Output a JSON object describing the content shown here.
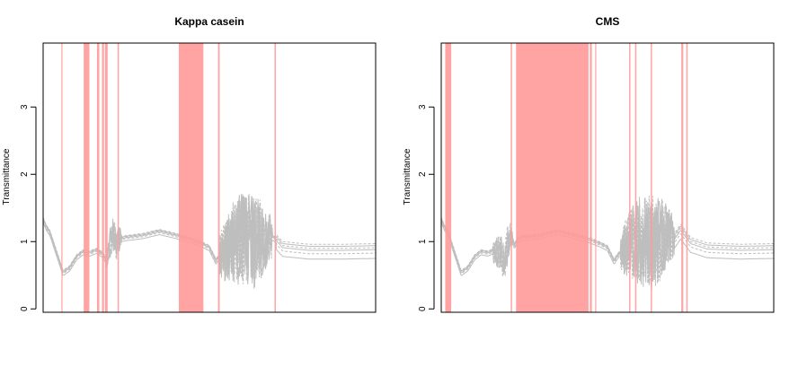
{
  "chart_data": [
    {
      "type": "line",
      "title": "Kappa casein",
      "xlabel": "",
      "ylabel": "Transmittance",
      "x_tick_labels_shown": false,
      "xlim": [
        0,
        1
      ],
      "ylim": [
        -0.05,
        3.95
      ],
      "yticks": [
        0,
        1,
        2,
        3
      ],
      "grid": false,
      "line_color": "#bebebe",
      "highlight_color": "#ff9999",
      "highlight_regions": [
        [
          0.055,
          0.058
        ],
        [
          0.122,
          0.139
        ],
        [
          0.162,
          0.169
        ],
        [
          0.177,
          0.183
        ],
        [
          0.186,
          0.194
        ],
        [
          0.224,
          0.228
        ],
        [
          0.408,
          0.482
        ],
        [
          0.526,
          0.531
        ],
        [
          0.696,
          0.7
        ]
      ],
      "series_profile": {
        "x": [
          0.0,
          0.01,
          0.02,
          0.04,
          0.06,
          0.08,
          0.1,
          0.12,
          0.14,
          0.16,
          0.18,
          0.19,
          0.2,
          0.21,
          0.22,
          0.23,
          0.25,
          0.3,
          0.35,
          0.4,
          0.45,
          0.48,
          0.5,
          0.52,
          0.53,
          0.56,
          0.6,
          0.64,
          0.68,
          0.7,
          0.72,
          0.8,
          0.9,
          1.0
        ],
        "y": [
          1.34,
          1.22,
          1.15,
          0.85,
          0.55,
          0.62,
          0.78,
          0.86,
          0.84,
          0.88,
          0.82,
          0.72,
          0.98,
          1.12,
          0.95,
          1.05,
          1.07,
          1.1,
          1.16,
          1.1,
          1.03,
          0.97,
          0.92,
          0.72,
          0.8,
          0.95,
          1.05,
          1.0,
          1.1,
          1.05,
          0.94,
          0.9,
          0.9,
          0.91
        ]
      },
      "noisy_ranges": [
        {
          "x": [
            0.19,
            0.235
          ],
          "amplitude": 0.5
        },
        {
          "x": [
            0.53,
            0.69
          ],
          "amplitude": 1.4
        }
      ],
      "offsets": [
        -0.16,
        -0.08,
        -0.03,
        0,
        0.03,
        0.06
      ]
    },
    {
      "type": "line",
      "title": "CMS",
      "xlabel": "",
      "ylabel": "Transmittance",
      "x_tick_labels_shown": false,
      "xlim": [
        0,
        1
      ],
      "ylim": [
        -0.05,
        3.95
      ],
      "yticks": [
        0,
        1,
        2,
        3
      ],
      "grid": false,
      "line_color": "#bebebe",
      "highlight_color": "#ff9999",
      "highlight_regions": [
        [
          0.012,
          0.03
        ],
        [
          0.209,
          0.213
        ],
        [
          0.225,
          0.443
        ],
        [
          0.447,
          0.453
        ],
        [
          0.463,
          0.466
        ],
        [
          0.565,
          0.569
        ],
        [
          0.583,
          0.587
        ],
        [
          0.63,
          0.634
        ],
        [
          0.722,
          0.728
        ],
        [
          0.737,
          0.741
        ]
      ],
      "series_profile": {
        "x": [
          0.0,
          0.01,
          0.02,
          0.04,
          0.06,
          0.08,
          0.1,
          0.12,
          0.14,
          0.16,
          0.18,
          0.19,
          0.2,
          0.21,
          0.22,
          0.23,
          0.25,
          0.3,
          0.35,
          0.4,
          0.45,
          0.48,
          0.5,
          0.52,
          0.53,
          0.56,
          0.6,
          0.64,
          0.68,
          0.7,
          0.72,
          0.75,
          0.8,
          0.9,
          1.0
        ],
        "y": [
          1.34,
          1.22,
          1.15,
          0.85,
          0.55,
          0.62,
          0.78,
          0.86,
          0.84,
          0.88,
          0.82,
          0.72,
          0.98,
          1.12,
          0.95,
          1.05,
          1.07,
          1.1,
          1.16,
          1.1,
          1.03,
          0.97,
          0.92,
          0.72,
          0.8,
          0.95,
          1.05,
          1.0,
          1.1,
          1.05,
          1.2,
          1.0,
          0.92,
          0.9,
          0.91
        ]
      },
      "noisy_ranges": [
        {
          "x": [
            0.155,
            0.215
          ],
          "amplitude": 0.55
        },
        {
          "x": [
            0.54,
            0.7
          ],
          "amplitude": 1.4
        }
      ],
      "offsets": [
        -0.16,
        -0.08,
        -0.03,
        0,
        0.03,
        0.06
      ]
    }
  ]
}
